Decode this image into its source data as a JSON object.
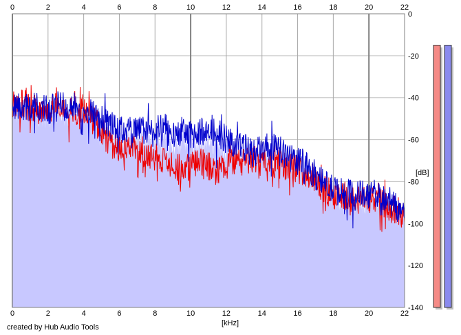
{
  "chart_data": {
    "type": "line",
    "xlabel": "[kHz]",
    "ylabel": "[dB]",
    "xlim": [
      0,
      22
    ],
    "ylim": [
      -140,
      0
    ],
    "x_ticks": [
      0,
      2,
      4,
      6,
      8,
      10,
      12,
      14,
      16,
      18,
      20,
      22
    ],
    "y_ticks": [
      0,
      -20,
      -40,
      -60,
      -80,
      -100,
      -120,
      -140
    ],
    "x_tick_labels": [
      "0",
      "2",
      "4",
      "6",
      "8",
      "10",
      "12",
      "14",
      "16",
      "18",
      "20",
      "22"
    ],
    "y_tick_labels": [
      "0",
      "-20",
      "-40",
      "-60",
      "-80",
      "-100",
      "-120",
      "-140"
    ],
    "grid": true,
    "series": [
      {
        "color": "#ee0000",
        "x": [
          0,
          0.5,
          1,
          1.5,
          2,
          2.5,
          3,
          3.5,
          4,
          4.5,
          5,
          5.5,
          6,
          6.5,
          7,
          7.5,
          8,
          8.5,
          9,
          9.5,
          10,
          10.5,
          11,
          11.5,
          12,
          12.5,
          13,
          13.5,
          14,
          14.5,
          15,
          15.5,
          16,
          16.5,
          17,
          17.5,
          18,
          18.5,
          19,
          19.5,
          20,
          20.5,
          21,
          21.5,
          22
        ],
        "values": [
          -43,
          -42,
          -45,
          -46,
          -47,
          -45,
          -46,
          -47,
          -45,
          -50,
          -56,
          -62,
          -64,
          -62,
          -65,
          -68,
          -68,
          -70,
          -72,
          -74,
          -73,
          -70,
          -73,
          -75,
          -72,
          -70,
          -71,
          -69,
          -70,
          -70,
          -72,
          -73,
          -74,
          -76,
          -80,
          -84,
          -86,
          -86,
          -88,
          -90,
          -88,
          -88,
          -92,
          -94,
          -97
        ]
      },
      {
        "color": "#0000cc",
        "x": [
          0,
          0.5,
          1,
          1.5,
          2,
          2.5,
          3,
          3.5,
          4,
          4.5,
          5,
          5.5,
          6,
          6.5,
          7,
          7.5,
          8,
          8.5,
          9,
          9.5,
          10,
          10.5,
          11,
          11.5,
          12,
          12.5,
          13,
          13.5,
          14,
          14.5,
          15,
          15.5,
          16,
          16.5,
          17,
          17.5,
          18,
          18.5,
          19,
          19.5,
          20,
          20.5,
          21,
          21.5,
          22
        ],
        "values": [
          -43,
          -44,
          -45,
          -44,
          -46,
          -43,
          -45,
          -44,
          -46,
          -48,
          -50,
          -53,
          -56,
          -55,
          -56,
          -55,
          -57,
          -54,
          -58,
          -56,
          -58,
          -56,
          -57,
          -56,
          -60,
          -62,
          -64,
          -66,
          -65,
          -63,
          -66,
          -68,
          -70,
          -72,
          -77,
          -81,
          -84,
          -85,
          -86,
          -86,
          -86,
          -86,
          -88,
          -92,
          -95
        ]
      }
    ],
    "level_meters": [
      {
        "color": "#f58a86",
        "value_db": -15
      },
      {
        "color": "#8a8aee",
        "value_db": -15
      }
    ],
    "footer": "created by Hub Audio Tools"
  }
}
